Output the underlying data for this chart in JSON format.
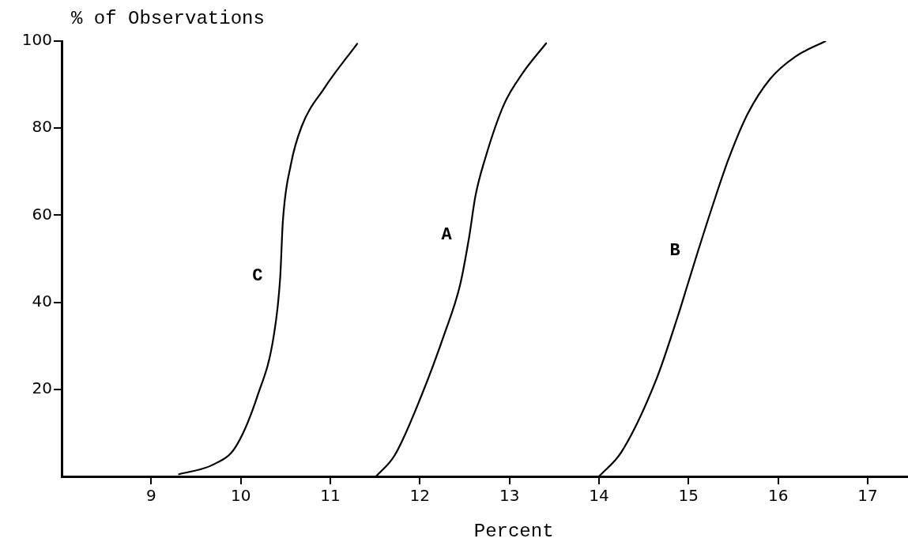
{
  "chart_data": {
    "type": "line",
    "xlabel": "Percent",
    "ylabel": "% of Observations",
    "xlim": [
      8,
      17.45
    ],
    "xticks": [
      9,
      10,
      11,
      12,
      13,
      14,
      15,
      16,
      17
    ],
    "ylim": [
      0,
      100
    ],
    "yticks": [
      20,
      40,
      60,
      80,
      100
    ],
    "grid": false,
    "legend": false,
    "marker": "none",
    "line_style": "solid",
    "series": [
      {
        "name": "C",
        "color": "#000000",
        "x": [
          9.31,
          9.69,
          9.94,
          10.19,
          10.37,
          10.44,
          10.47,
          10.56,
          10.68,
          10.93,
          11.3
        ],
        "values": [
          0.5,
          2.7,
          6.7,
          18.7,
          32.5,
          45.6,
          58.6,
          71.7,
          80.4,
          89.1,
          99.4
        ]
      },
      {
        "name": "A",
        "color": "#000000",
        "x": [
          11.51,
          11.72,
          12.02,
          12.27,
          12.45,
          12.55,
          12.62,
          12.73,
          12.94,
          13.15,
          13.41
        ],
        "values": [
          0,
          4.9,
          18.7,
          32.5,
          44.1,
          55,
          64.4,
          73.1,
          85.5,
          92.7,
          99.5
        ]
      },
      {
        "name": "B",
        "color": "#000000",
        "x": [
          14,
          14.25,
          14.64,
          14.88,
          14.99,
          15.1,
          15.27,
          15.45,
          15.66,
          15.91,
          16.19,
          16.53
        ],
        "values": [
          0,
          5.6,
          22.3,
          36.8,
          44.1,
          51.4,
          62.3,
          73.1,
          83.3,
          91.3,
          96.4,
          100
        ]
      }
    ]
  }
}
